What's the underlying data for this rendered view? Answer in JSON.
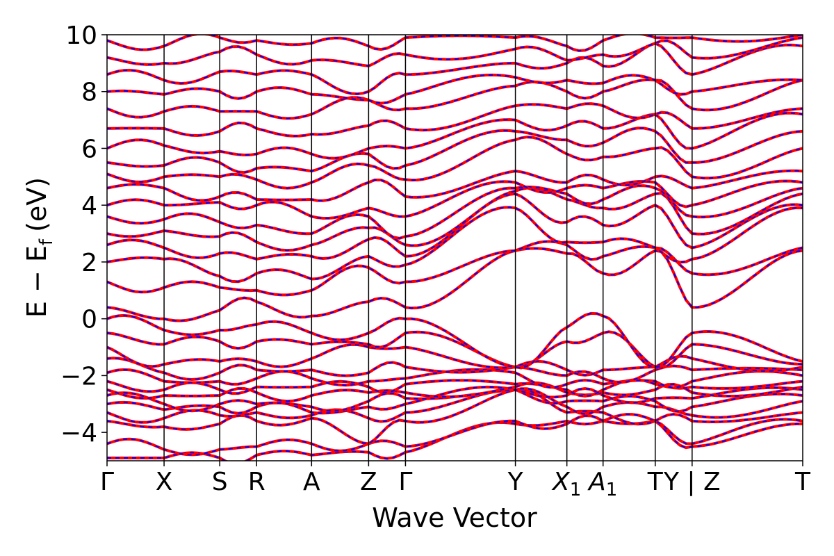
{
  "chart_data": {
    "type": "line",
    "title": "",
    "xlabel": "Wave Vector",
    "ylabel": "E − E",
    "ylabel_subscript": "f",
    "ylabel_unit": "(eV)",
    "ylim": [
      -5,
      10
    ],
    "yticks": [
      -4,
      -2,
      0,
      2,
      4,
      6,
      8,
      10
    ],
    "ytick_labels": [
      "−4",
      "−2",
      "0",
      "2",
      "4",
      "6",
      "8",
      "10"
    ],
    "grid": false,
    "series": [
      {
        "color": "#ff0000",
        "style": "solid"
      },
      {
        "color": "#0000ff",
        "style": "dashed"
      }
    ],
    "kpath": [
      {
        "label": "Γ",
        "sub": "",
        "x": 0.0
      },
      {
        "label": "X",
        "sub": "",
        "x": 0.082
      },
      {
        "label": "S",
        "sub": "",
        "x": 0.162
      },
      {
        "label": "R",
        "sub": "",
        "x": 0.215
      },
      {
        "label": "A",
        "sub": "",
        "x": 0.294
      },
      {
        "label": "Z",
        "sub": "",
        "x": 0.376
      },
      {
        "label": "Γ",
        "sub": "",
        "x": 0.429
      },
      {
        "label": "Y",
        "sub": "",
        "x": 0.587
      },
      {
        "label": "X",
        "sub": "1",
        "x": 0.661
      },
      {
        "label": "A",
        "sub": "1",
        "x": 0.713
      },
      {
        "label": "T",
        "sub": "",
        "x": 0.788
      },
      {
        "label": "Y | Z",
        "sub": "",
        "x": 0.841
      },
      {
        "label": "T",
        "sub": "",
        "x": 1.0
      }
    ],
    "bands_at_kpoints": [
      [
        -4.9,
        -4.9,
        -4.9,
        -4.8,
        -4.8,
        -4.7,
        -4.7,
        -3.7,
        -3.6,
        -3.6,
        -3.6,
        -4.5,
        -3.7
      ],
      [
        -4.4,
        -4.6,
        -4.6,
        -4.5,
        -4.4,
        -4.4,
        -4.5,
        -3.6,
        -3.7,
        -3.6,
        -3.6,
        -4.4,
        -3.6
      ],
      [
        -3.6,
        -3.8,
        -3.7,
        -3.6,
        -3.5,
        -4.4,
        -3.6,
        -2.5,
        -3.3,
        -3.3,
        -3.6,
        -3.6,
        -3.3
      ],
      [
        -3.3,
        -3.5,
        -3.4,
        -3.3,
        -3.4,
        -3.5,
        -3.3,
        -2.5,
        -3.1,
        -3.1,
        -3.1,
        -3.4,
        -2.9
      ],
      [
        -3.0,
        -3.2,
        -3.1,
        -3.1,
        -3.3,
        -3.1,
        -3.0,
        -2.5,
        -2.9,
        -2.9,
        -2.9,
        -3.1,
        -2.7
      ],
      [
        -2.7,
        -3.0,
        -3.0,
        -3.0,
        -3.1,
        -2.9,
        -2.8,
        -2.5,
        -2.7,
        -2.7,
        -2.8,
        -2.8,
        -2.5
      ],
      [
        -2.5,
        -2.7,
        -2.7,
        -2.6,
        -2.7,
        -2.6,
        -2.6,
        -2.4,
        -2.6,
        -2.6,
        -2.5,
        -2.6,
        -2.4
      ],
      [
        -2.2,
        -2.5,
        -2.5,
        -2.4,
        -2.4,
        -2.4,
        -2.3,
        -2.3,
        -2.5,
        -2.5,
        -2.3,
        -2.4,
        -2.2
      ],
      [
        -1.9,
        -2.2,
        -2.2,
        -2.1,
        -2.1,
        -2.2,
        -2.1,
        -1.9,
        -2.3,
        -2.3,
        -2.2,
        -2.2,
        -2.0
      ],
      [
        -1.4,
        -1.9,
        -1.9,
        -1.8,
        -1.8,
        -1.9,
        -1.7,
        -1.7,
        -2.0,
        -2.1,
        -1.8,
        -1.8,
        -1.8
      ],
      [
        -1.0,
        -1.6,
        -1.5,
        -1.5,
        -1.4,
        -1.0,
        -1.0,
        -1.7,
        -1.8,
        -1.8,
        -1.7,
        -1.4,
        -1.7
      ],
      [
        -0.5,
        -0.9,
        -0.8,
        -0.8,
        -0.9,
        -0.9,
        -0.5,
        -1.7,
        -0.8,
        -0.5,
        -1.7,
        -0.9,
        -1.6
      ],
      [
        0.0,
        -0.4,
        -0.4,
        -0.2,
        -0.5,
        -0.5,
        0.0,
        -1.7,
        -0.3,
        0.1,
        -1.7,
        -0.5,
        -1.5
      ],
      [
        0.4,
        0.0,
        0.3,
        0.6,
        0.1,
        0.6,
        0.4,
        2.4,
        2.3,
        1.6,
        2.4,
        0.4,
        2.4
      ],
      [
        1.3,
        1.1,
        1.1,
        1.0,
        1.0,
        1.8,
        1.3,
        2.4,
        2.6,
        2.2,
        2.5,
        1.6,
        2.5
      ],
      [
        2.0,
        2.1,
        1.5,
        1.6,
        1.4,
        2.2,
        1.9,
        3.9,
        2.7,
        2.7,
        2.5,
        2.1,
        3.9
      ],
      [
        2.6,
        2.5,
        2.3,
        2.1,
        2.2,
        2.8,
        2.2,
        4.4,
        3.4,
        3.3,
        4.0,
        2.5,
        4.0
      ],
      [
        3.0,
        3.1,
        2.9,
        2.7,
        2.6,
        3.2,
        2.6,
        4.5,
        4.2,
        3.9,
        4.4,
        3.0,
        4.4
      ],
      [
        3.6,
        3.5,
        3.4,
        3.3,
        3.0,
        3.6,
        2.9,
        4.6,
        4.4,
        4.2,
        4.6,
        3.6,
        4.6
      ],
      [
        4.0,
        4.0,
        4.1,
        4.0,
        3.6,
        3.9,
        3.6,
        4.8,
        4.6,
        4.6,
        4.8,
        4.0,
        4.8
      ],
      [
        4.6,
        4.6,
        4.3,
        4.2,
        4.2,
        4.8,
        4.3,
        5.2,
        4.8,
        4.9,
        5.0,
        4.6,
        5.2
      ],
      [
        5.1,
        5.0,
        5.0,
        4.9,
        4.8,
        5.4,
        4.9,
        6.3,
        5.8,
        5.7,
        6.0,
        5.0,
        6.0
      ],
      [
        5.5,
        5.4,
        5.5,
        5.3,
        5.2,
        5.8,
        5.4,
        6.6,
        6.3,
        6.2,
        6.6,
        5.5,
        6.6
      ],
      [
        6.0,
        6.1,
        5.9,
        5.8,
        5.8,
        6.0,
        6.0,
        7.0,
        6.8,
        6.7,
        7.2,
        6.0,
        7.2
      ],
      [
        6.7,
        6.7,
        6.6,
        6.7,
        6.5,
        6.8,
        6.7,
        7.5,
        7.4,
        7.5,
        7.2,
        6.7,
        7.4
      ],
      [
        7.4,
        7.3,
        7.3,
        7.3,
        7.2,
        7.7,
        7.4,
        8.2,
        8.0,
        8.0,
        8.4,
        7.4,
        8.4
      ],
      [
        8.0,
        7.9,
        8.0,
        8.0,
        7.9,
        7.7,
        7.9,
        8.5,
        8.4,
        8.3,
        8.4,
        8.0,
        8.4
      ],
      [
        8.6,
        8.4,
        8.7,
        8.6,
        8.6,
        8.0,
        8.6,
        9.0,
        9.0,
        8.9,
        9.7,
        8.6,
        9.6
      ],
      [
        9.2,
        9.0,
        9.4,
        9.3,
        9.1,
        8.9,
        9.3,
        9.5,
        9.1,
        9.3,
        9.7,
        9.2,
        9.9
      ],
      [
        9.8,
        9.6,
        9.9,
        9.8,
        9.7,
        9.6,
        9.9,
        9.9,
        9.6,
        9.8,
        9.9,
        9.9,
        10.0
      ]
    ]
  }
}
